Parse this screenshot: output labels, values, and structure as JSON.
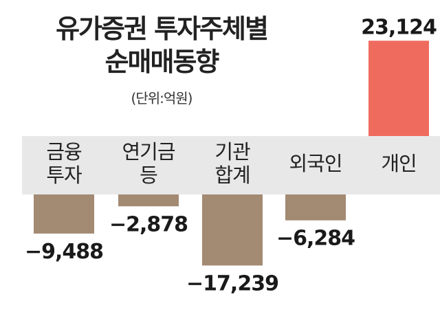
{
  "title_line1": "유가증권 투자주체별",
  "title_line2": "순매매동향",
  "unit": "(단위:억원)",
  "chart_data": {
    "type": "bar",
    "title": "유가증권 투자주체별 순매매동향",
    "unit": "(단위:억원)",
    "categories": [
      [
        "금융",
        "투자"
      ],
      [
        "연기금",
        "등"
      ],
      [
        "기관",
        "합계"
      ],
      [
        "외국인"
      ],
      [
        "개인"
      ]
    ],
    "values": [
      -9488,
      -2878,
      -17239,
      -6284,
      23124
    ],
    "value_labels": [
      "−9,488",
      "−2,878",
      "−17,239",
      "−6,284",
      "23,124"
    ],
    "colors": {
      "negative": "#a38a73",
      "positive": "#ef6b5e",
      "axis_band": "#e8e8e8"
    }
  }
}
